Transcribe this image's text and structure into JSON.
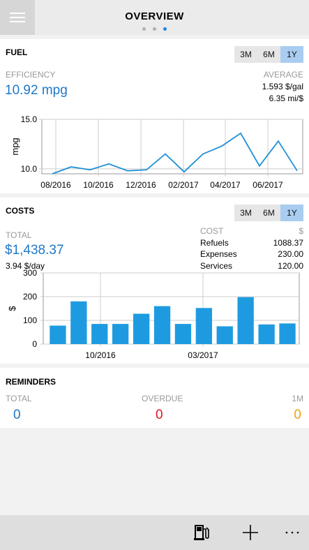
{
  "header": {
    "title": "OVERVIEW",
    "page_count": 3,
    "active_page": 2,
    "menu_icon": "hamburger-icon"
  },
  "fuel": {
    "title": "FUEL",
    "ranges": [
      "3M",
      "6M",
      "1Y"
    ],
    "selected_range": "1Y",
    "efficiency_label": "EFFICIENCY",
    "efficiency_value": "10.92 mpg",
    "average_label": "AVERAGE",
    "avg_cost": "1.593 $/gal",
    "avg_dist": "6.35 mi/$"
  },
  "costs": {
    "title": "COSTS",
    "ranges": [
      "3M",
      "6M",
      "1Y"
    ],
    "selected_range": "1Y",
    "total_label": "TOTAL",
    "total_value": "$1,438.37",
    "per_day": "3.94 $/day",
    "table_head_left": "COST",
    "table_head_right": "$",
    "rows": [
      {
        "name": "Refuels",
        "value": "1088.37"
      },
      {
        "name": "Expenses",
        "value": "230.00"
      },
      {
        "name": "Services",
        "value": "120.00"
      }
    ]
  },
  "reminders": {
    "title": "REMINDERS",
    "total_label": "TOTAL",
    "total_value": "0",
    "overdue_label": "OVERDUE",
    "overdue_value": "0",
    "month_label": "1M",
    "month_value": "0",
    "colors": {
      "total": "#1e78c8",
      "overdue": "#e81123",
      "month": "#f0a30a"
    }
  },
  "bottom_bar": {
    "icons": [
      "fuel-pump-icon",
      "add-icon",
      "more-icon"
    ]
  },
  "chart_data": [
    {
      "type": "line",
      "ylabel": "mpg",
      "ylim": [
        9.5,
        15.0
      ],
      "yticks": [
        10.0,
        15.0
      ],
      "ytick_labels": [
        "10.0",
        "15.0"
      ],
      "xtick_labels": [
        "08/2016",
        "10/2016",
        "12/2016",
        "02/2017",
        "04/2017",
        "06/2017"
      ],
      "series": [
        {
          "color": "#1e90d6",
          "values": [
            9.5,
            10.2,
            9.9,
            10.5,
            9.8,
            9.9,
            11.5,
            9.7,
            11.5,
            12.3,
            13.6,
            10.3,
            12.8,
            9.8
          ]
        }
      ],
      "grid": true
    },
    {
      "type": "bar",
      "ylabel": "$",
      "ylim": [
        0,
        300
      ],
      "yticks": [
        0,
        100,
        200,
        300
      ],
      "xtick_labels": [
        "10/2016",
        "03/2017"
      ],
      "values": [
        78,
        180,
        85,
        85,
        128,
        160,
        85,
        152,
        75,
        198,
        83,
        87
      ],
      "color": "#1e9be0",
      "grid": true
    }
  ]
}
